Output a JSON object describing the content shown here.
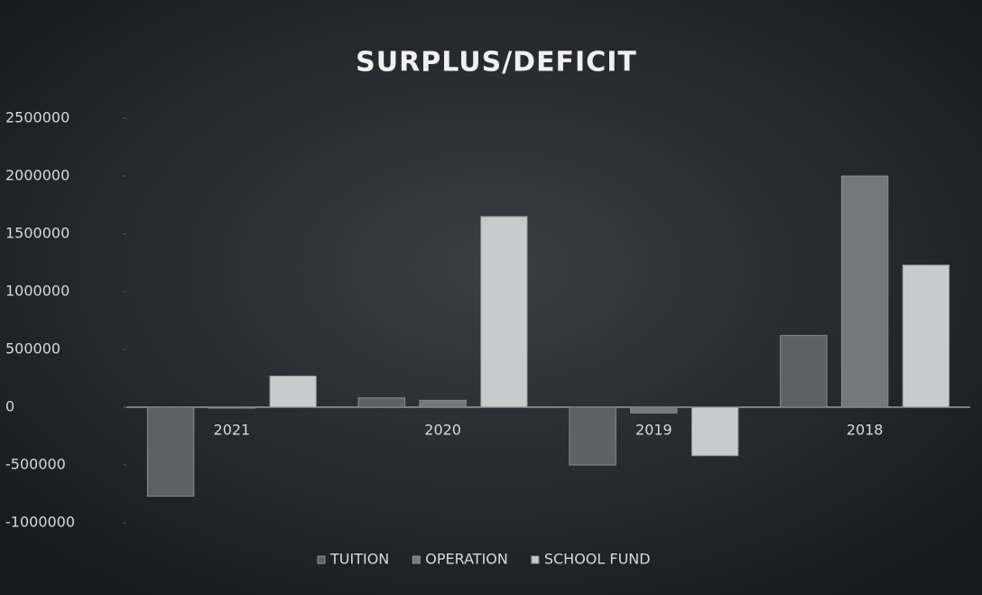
{
  "chart_data": {
    "type": "bar",
    "title": "SURPLUS/DEFICIT",
    "categories": [
      "2021",
      "2020",
      "2019",
      "2018"
    ],
    "series": [
      {
        "name": "TUITION",
        "color": "#5e6064",
        "values": [
          -770000,
          80000,
          -500000,
          620000
        ]
      },
      {
        "name": "OPERATION",
        "color": "#75777b",
        "values": [
          0,
          60000,
          -50000,
          2000000
        ]
      },
      {
        "name": "SCHOOL FUND",
        "color": "#c9cacc",
        "values": [
          270000,
          1650000,
          -420000,
          1230000
        ]
      }
    ],
    "ylim": [
      -1000000,
      2500000
    ],
    "yticks": [
      -1000000,
      -500000,
      0,
      500000,
      1000000,
      1500000,
      2000000,
      2500000
    ],
    "grid": false,
    "legend": "bottom"
  }
}
